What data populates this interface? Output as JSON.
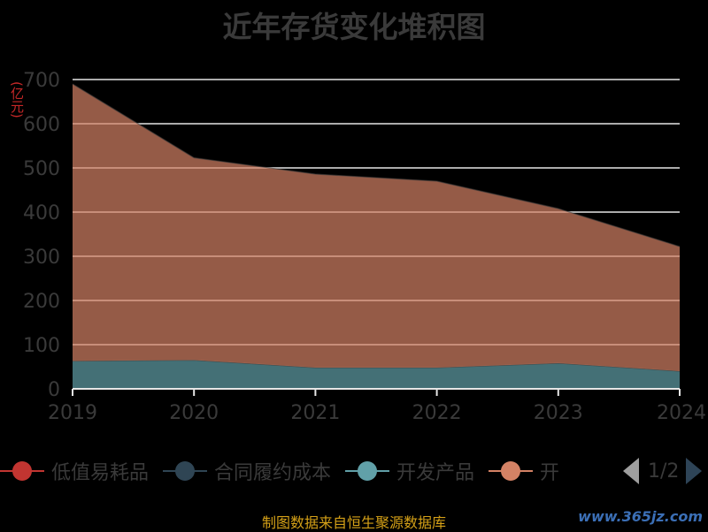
{
  "chart_data": {
    "type": "area",
    "stacked": true,
    "title": "近年存货变化堆积图",
    "unit_label": "(亿元)",
    "categories": [
      "2019",
      "2020",
      "2021",
      "2022",
      "2023",
      "2024"
    ],
    "series": [
      {
        "name": "低值易耗品",
        "values": [
          0,
          0,
          0,
          0,
          0,
          0
        ],
        "color": "#c23531"
      },
      {
        "name": "合同履约成本",
        "values": [
          0,
          0,
          0,
          0,
          0,
          0
        ],
        "color": "#2f4554"
      },
      {
        "name": "开发产品",
        "values": [
          63,
          65,
          48,
          48,
          58,
          40
        ],
        "color": "#61a0a8"
      },
      {
        "name": "开发成本",
        "values": [
          627,
          458,
          438,
          422,
          350,
          282
        ],
        "color": "#d48265"
      }
    ],
    "ylim": [
      0,
      700
    ],
    "yticks": [
      0,
      100,
      200,
      300,
      400,
      500,
      600,
      700
    ],
    "grid": true,
    "legend_position": "bottom"
  },
  "legend": {
    "items": [
      "低值易耗品",
      "合同履约成本",
      "开发产品",
      "开"
    ],
    "page_indicator": "1/2"
  },
  "footer": {
    "source": "制图数据来自恒生聚源数据库",
    "watermark": "www.365jz.com"
  }
}
